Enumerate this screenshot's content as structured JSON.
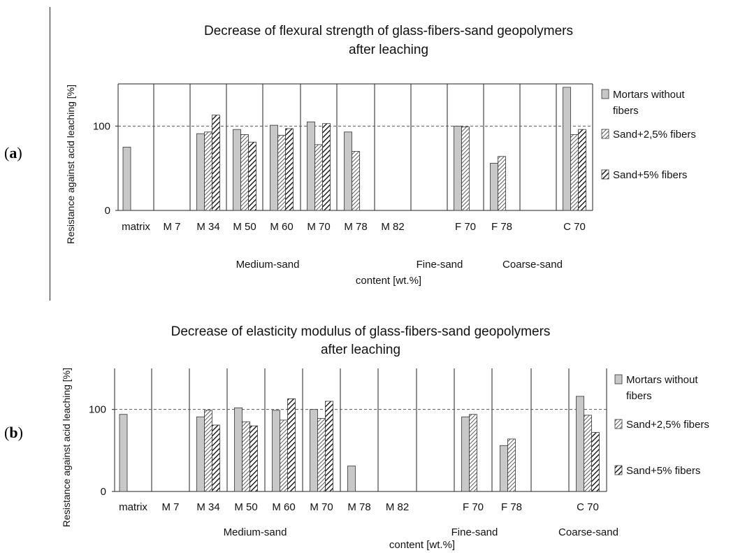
{
  "panels": {
    "a": {
      "open": "(",
      "letter": "a",
      "close": ")"
    },
    "b": {
      "open": "(",
      "letter": "b",
      "close": ")"
    }
  },
  "colors": {
    "gray_fill": "#c8c8c8",
    "axis": "#222222",
    "reference_line": "#555555"
  },
  "chart_data": [
    {
      "type": "bar",
      "title_line1": "Decrease of flexural strength of glass-fibers-sand geopolymers",
      "title_line2": "after leaching",
      "xlabel": "content [wt.%]",
      "ylabel": "Resistance against acid leaching  [%]",
      "ylim": [
        0,
        150
      ],
      "yticks": [
        0,
        100
      ],
      "reference_line": 100,
      "grid": false,
      "legend": "right",
      "categories": [
        "matrix",
        "M 7",
        "M 34",
        "M 50",
        "M 60",
        "M 70",
        "M 78",
        "M 82",
        "",
        "F 70",
        "F 78",
        "",
        "C 70"
      ],
      "groups": [
        {
          "label": "Medium-sand"
        },
        {
          "label": "Fine-sand"
        },
        {
          "label": "Coarse-sand"
        }
      ],
      "series": [
        {
          "name": "Mortars without fibers",
          "name_line1": "Mortars without",
          "name_line2": "fibers",
          "pattern": "solid",
          "values": [
            75,
            null,
            91,
            96,
            101,
            105,
            93,
            null,
            null,
            100,
            56,
            null,
            146
          ]
        },
        {
          "name": "Sand+2,5% fibers",
          "name_line1": "Sand+2,5% fibers",
          "name_line2": "",
          "pattern": "fine-hatch",
          "values": [
            null,
            null,
            93,
            90,
            89,
            78,
            70,
            null,
            null,
            99,
            64,
            null,
            90
          ]
        },
        {
          "name": "Sand+5% fibers",
          "name_line1": "Sand+5% fibers",
          "name_line2": "",
          "pattern": "bold-hatch",
          "values": [
            null,
            null,
            113,
            81,
            97,
            103,
            null,
            null,
            null,
            null,
            null,
            null,
            96
          ]
        }
      ]
    },
    {
      "type": "bar",
      "title_line1": "Decrease of elasticity modulus of glass-fibers-sand geopolymers",
      "title_line2": "after leaching",
      "xlabel": "content [wt.%]",
      "ylabel": "Resistance against acid leaching  [%]",
      "ylim": [
        0,
        150
      ],
      "yticks": [
        0,
        100
      ],
      "reference_line": 100,
      "grid": false,
      "legend": "right",
      "categories": [
        "matrix",
        "M 7",
        "M 34",
        "M 50",
        "M 60",
        "M 70",
        "M 78",
        "M 82",
        "",
        "F 70",
        "F 78",
        "",
        "C 70"
      ],
      "groups": [
        {
          "label": "Medium-sand"
        },
        {
          "label": "Fine-sand"
        },
        {
          "label": "Coarse-sand"
        }
      ],
      "series": [
        {
          "name": "Mortars without fibers",
          "name_line1": "Mortars without",
          "name_line2": "fibers",
          "pattern": "solid",
          "values": [
            94,
            null,
            91,
            102,
            99,
            100,
            31,
            null,
            null,
            91,
            56,
            null,
            116
          ]
        },
        {
          "name": "Sand+2,5% fibers",
          "name_line1": "Sand+2,5% fibers",
          "name_line2": "",
          "pattern": "fine-hatch",
          "values": [
            null,
            null,
            99,
            85,
            87,
            89,
            null,
            null,
            null,
            94,
            64,
            null,
            93
          ]
        },
        {
          "name": "Sand+5%  fibers",
          "name_line1": "Sand+5%  fibers",
          "name_line2": "",
          "pattern": "bold-hatch",
          "values": [
            null,
            null,
            81,
            80,
            113,
            110,
            null,
            null,
            null,
            null,
            null,
            null,
            72
          ]
        }
      ]
    }
  ]
}
